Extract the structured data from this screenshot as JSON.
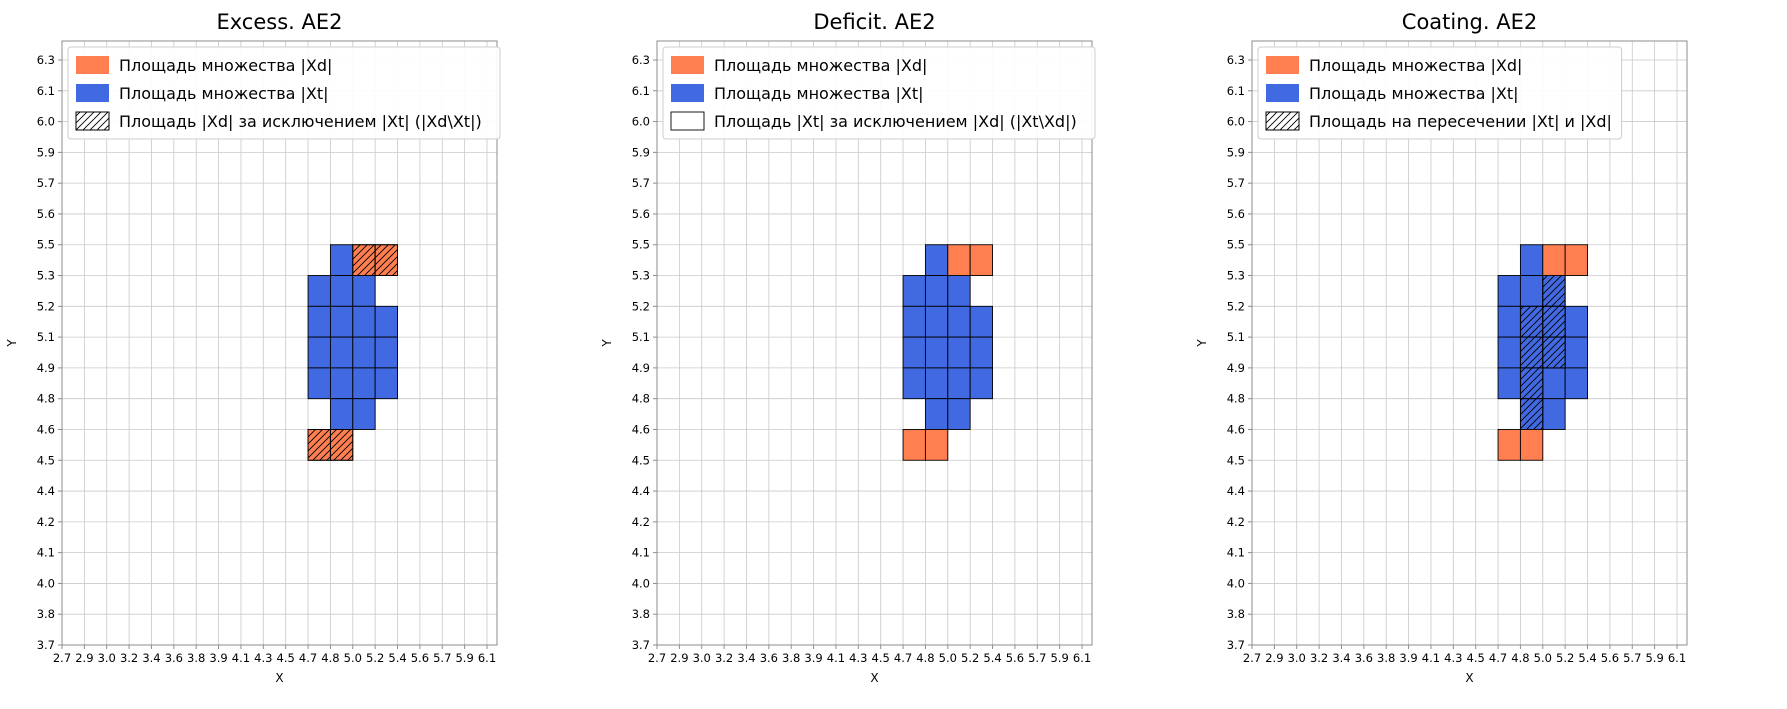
{
  "figure": {
    "xlabel": "X",
    "ylabel": "Y",
    "x_ticks": [
      "2.7",
      "2.9",
      "3.0",
      "3.2",
      "3.4",
      "3.6",
      "3.8",
      "3.9",
      "4.1",
      "4.3",
      "4.5",
      "4.7",
      "4.8",
      "5.0",
      "5.2",
      "5.4",
      "5.6",
      "5.7",
      "5.9",
      "6.1"
    ],
    "y_ticks_top_to_bottom": [
      "6.3",
      "6.1",
      "6.0",
      "5.9",
      "5.7",
      "5.6",
      "5.5",
      "5.3",
      "5.2",
      "5.1",
      "4.9",
      "4.8",
      "4.6",
      "4.5",
      "4.4",
      "4.2",
      "4.1",
      "4.0",
      "3.8",
      "3.7"
    ],
    "cell_indexing_note": "cells are [x_interval_index, y_interval_index_from_top] between consecutive tick gridlines",
    "colors": {
      "xd_orange": "#ff7f50",
      "xt_blue": "#4169e1",
      "grid": "#c9c9c9",
      "spine": "#8c8c8c",
      "cell_edge": "#000000",
      "legend_border": "#cccccc",
      "text": "#000000"
    }
  },
  "chart_data": [
    {
      "type": "heatmap",
      "title": "Excess. AE2",
      "xlabel": "X",
      "ylabel": "Y",
      "legend": [
        {
          "label": "Площадь множества |Xd|",
          "fill": "xd",
          "hatch": false
        },
        {
          "label": "Площадь множества  |Xt|",
          "fill": "xt",
          "hatch": false
        },
        {
          "label": "Площадь |Xd| за исключением |Xt| (|Xd\\Xt|)",
          "fill": "none",
          "hatch": true
        }
      ],
      "cells": {
        "xt_blue": [
          [
            12,
            6
          ],
          [
            11,
            7
          ],
          [
            12,
            7
          ],
          [
            13,
            7
          ],
          [
            11,
            8
          ],
          [
            12,
            8
          ],
          [
            13,
            8
          ],
          [
            14,
            8
          ],
          [
            11,
            9
          ],
          [
            12,
            9
          ],
          [
            13,
            9
          ],
          [
            14,
            9
          ],
          [
            11,
            10
          ],
          [
            12,
            10
          ],
          [
            13,
            10
          ],
          [
            14,
            10
          ],
          [
            12,
            11
          ],
          [
            13,
            11
          ]
        ],
        "xt_blue_hatched": [],
        "xd_orange": [],
        "xd_orange_hatched": [
          [
            13,
            6
          ],
          [
            14,
            6
          ],
          [
            11,
            12
          ],
          [
            12,
            12
          ]
        ]
      }
    },
    {
      "type": "heatmap",
      "title": "Deficit. AE2",
      "xlabel": "X",
      "ylabel": "Y",
      "legend": [
        {
          "label": "Площадь множества |Xd|",
          "fill": "xd",
          "hatch": false
        },
        {
          "label": "Площадь множества  |Xt|",
          "fill": "xt",
          "hatch": false
        },
        {
          "label": "Площадь |Xt| за исключением |Xd| (|Xt\\Xd|)",
          "fill": "none",
          "hatch": false
        }
      ],
      "cells": {
        "xt_blue": [
          [
            12,
            6
          ],
          [
            11,
            7
          ],
          [
            12,
            7
          ],
          [
            13,
            7
          ],
          [
            11,
            8
          ],
          [
            12,
            8
          ],
          [
            13,
            8
          ],
          [
            14,
            8
          ],
          [
            11,
            9
          ],
          [
            12,
            9
          ],
          [
            13,
            9
          ],
          [
            14,
            9
          ],
          [
            11,
            10
          ],
          [
            12,
            10
          ],
          [
            13,
            10
          ],
          [
            14,
            10
          ],
          [
            12,
            11
          ],
          [
            13,
            11
          ]
        ],
        "xt_blue_hatched": [],
        "xd_orange": [
          [
            13,
            6
          ],
          [
            14,
            6
          ],
          [
            11,
            12
          ],
          [
            12,
            12
          ]
        ],
        "xd_orange_hatched": []
      }
    },
    {
      "type": "heatmap",
      "title": "Coating. AE2",
      "xlabel": "X",
      "ylabel": "Y",
      "legend": [
        {
          "label": "Площадь множества |Xd|",
          "fill": "xd",
          "hatch": false
        },
        {
          "label": "Площадь множества  |Xt|",
          "fill": "xt",
          "hatch": false
        },
        {
          "label": "Площадь на пересечении |Xt| и |Xd|",
          "fill": "none",
          "hatch": true
        }
      ],
      "cells": {
        "xt_blue": [
          [
            12,
            6
          ],
          [
            11,
            7
          ],
          [
            12,
            7
          ],
          [
            11,
            8
          ],
          [
            14,
            8
          ],
          [
            11,
            9
          ],
          [
            14,
            9
          ],
          [
            11,
            10
          ],
          [
            13,
            10
          ],
          [
            14,
            10
          ],
          [
            13,
            11
          ]
        ],
        "xt_blue_hatched": [
          [
            13,
            7
          ],
          [
            12,
            8
          ],
          [
            13,
            8
          ],
          [
            12,
            9
          ],
          [
            13,
            9
          ],
          [
            12,
            10
          ],
          [
            12,
            11
          ]
        ],
        "xd_orange": [
          [
            13,
            6
          ],
          [
            14,
            6
          ],
          [
            11,
            12
          ],
          [
            12,
            12
          ]
        ],
        "xd_orange_hatched": []
      }
    }
  ]
}
